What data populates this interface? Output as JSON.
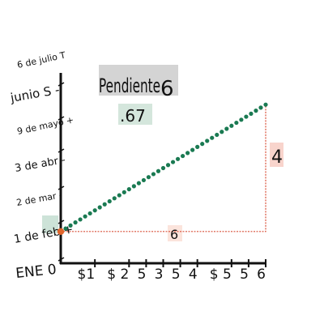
{
  "chart_data": {
    "type": "line",
    "title": "Pendiente",
    "title_suffix": "6",
    "slope_value": ".67",
    "run_label": "6",
    "rise_label": "4",
    "y_ticks": [
      "6 de julio T",
      "junio S -",
      "9 de mayo +",
      "3 de abr -",
      "2 de mar -",
      "1 de feb +",
      "ENE 0"
    ],
    "x_ticks": [
      "$1",
      "$ 2",
      "5",
      "3",
      "5",
      "4",
      "$ 5",
      "5",
      "6"
    ],
    "x_tick_values": [
      1,
      2,
      2.5,
      3,
      3.5,
      4,
      5,
      5.5,
      6
    ],
    "series": [
      {
        "x": [
          0,
          6
        ],
        "y": [
          1,
          5
        ]
      }
    ],
    "xlim": [
      0,
      6
    ],
    "ylim": [
      0,
      6
    ],
    "grid": false,
    "colors": {
      "line": "#1a7a52",
      "triangle": "#d9503a",
      "start_point": "#e0652c",
      "axis": "#111111"
    }
  }
}
